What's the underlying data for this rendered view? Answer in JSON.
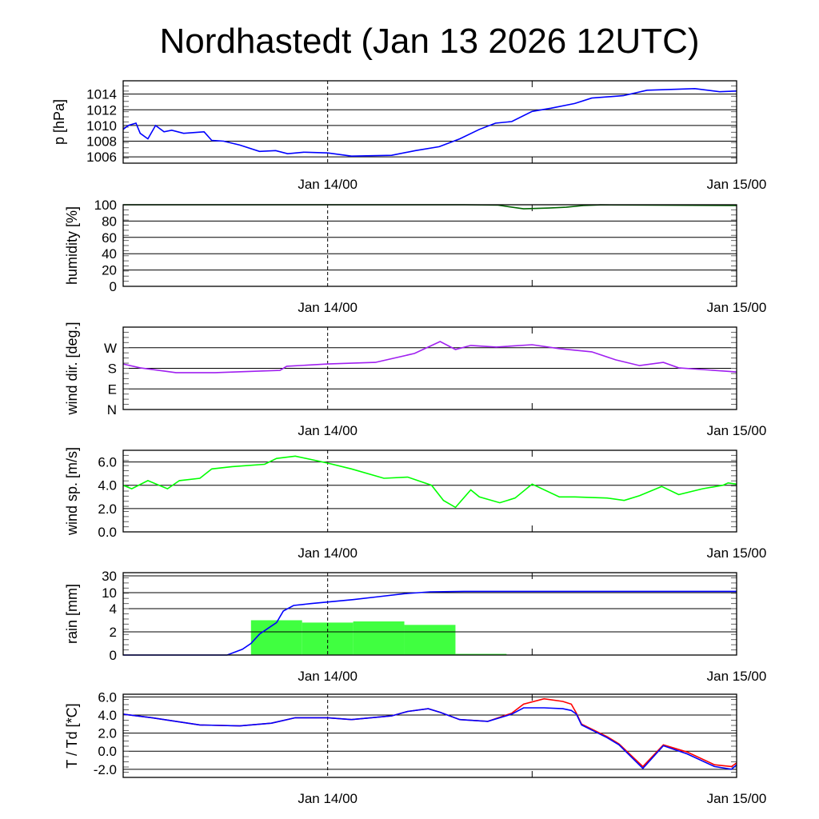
{
  "title": "Nordhastedt (Jan 13 2026 12UTC)",
  "chart_data": [
    {
      "id": "pressure",
      "type": "line",
      "ylabel": "p [hPa]",
      "x_unit": "hours since Jan 13 2026 12UTC",
      "xlim": [
        0,
        36
      ],
      "x_tick_labels": [
        {
          "x": 12,
          "label": "Jan 14/00"
        },
        {
          "x": 36,
          "label": "Jan 15/00"
        }
      ],
      "ylim": [
        1005.2,
        1015.7
      ],
      "y_ticks": [
        1006,
        1008,
        1010,
        1012,
        1014
      ],
      "y_tick_labels": [
        "1006",
        "1008",
        "1010",
        "1012",
        "1014"
      ],
      "series": [
        {
          "name": "p",
          "color": "#0000ff",
          "x": [
            0,
            0.3,
            0.75,
            1,
            1.45,
            1.9,
            2.4,
            2.85,
            3.55,
            4.75,
            5.2,
            5.9,
            6.85,
            8,
            8.95,
            9.65,
            10.6,
            12,
            13.4,
            15.75,
            17.15,
            18.55,
            19.75,
            20.9,
            21.85,
            22.8,
            24,
            25.1,
            26.5,
            27.5,
            29.35,
            30.75,
            33.55,
            35,
            36
          ],
          "y": [
            1009.5,
            1010,
            1010.3,
            1009,
            1008.3,
            1010,
            1009.2,
            1009.4,
            1009,
            1009.2,
            1008.1,
            1008,
            1007.5,
            1006.7,
            1006.8,
            1006.4,
            1006.6,
            1006.5,
            1006.1,
            1006.2,
            1006.8,
            1007.3,
            1008.3,
            1009.5,
            1010.3,
            1010.5,
            1011.8,
            1012.2,
            1012.8,
            1013.5,
            1013.8,
            1014.5,
            1014.7,
            1014.3,
            1014.4
          ]
        }
      ]
    },
    {
      "id": "humidity",
      "type": "line",
      "ylabel": "humidity [%]",
      "xlim": [
        0,
        36
      ],
      "x_tick_labels": [
        {
          "x": 12,
          "label": "Jan 14/00"
        },
        {
          "x": 36,
          "label": "Jan 15/00"
        }
      ],
      "ylim": [
        0,
        100
      ],
      "y_ticks": [
        0,
        20,
        40,
        60,
        80,
        100
      ],
      "y_tick_labels": [
        "0",
        "20",
        "40",
        "60",
        "80",
        "100"
      ],
      "series": [
        {
          "name": "humidity",
          "color": "#006400",
          "x": [
            0,
            20,
            22,
            23.5,
            25,
            26,
            27,
            28,
            36
          ],
          "y": [
            100,
            100,
            99.5,
            95,
            96,
            97,
            99,
            99.8,
            99
          ]
        }
      ]
    },
    {
      "id": "wind_dir",
      "type": "line",
      "ylabel": "wind dir. [deg.]",
      "xlim": [
        0,
        36
      ],
      "x_tick_labels": [
        {
          "x": 12,
          "label": "Jan 14/00"
        },
        {
          "x": 36,
          "label": "Jan 15/00"
        }
      ],
      "ylim": [
        0,
        360
      ],
      "y_ticks": [
        0,
        90,
        180,
        270
      ],
      "y_tick_labels": [
        "N",
        "E",
        "S",
        "W"
      ],
      "series": [
        {
          "name": "wind direction",
          "color": "#a020f0",
          "x": [
            0,
            1,
            3.1,
            5.4,
            9.2,
            9.6,
            12,
            14.8,
            17.1,
            18.6,
            19.5,
            20.4,
            21.9,
            24,
            25.6,
            27.5,
            28.9,
            30.3,
            31.7,
            32.6,
            36
          ],
          "y": [
            199,
            182,
            161,
            161,
            171,
            189,
            199,
            206,
            245,
            297,
            262,
            280,
            273,
            283,
            266,
            252,
            217,
            192,
            206,
            182,
            164
          ]
        }
      ]
    },
    {
      "id": "wind_speed",
      "type": "line",
      "ylabel": "wind sp. [m/s]",
      "xlim": [
        0,
        36
      ],
      "x_tick_labels": [
        {
          "x": 12,
          "label": "Jan 14/00"
        },
        {
          "x": 36,
          "label": "Jan 15/00"
        }
      ],
      "ylim": [
        0,
        7
      ],
      "y_ticks": [
        0,
        2,
        4,
        6
      ],
      "y_tick_labels": [
        "0.0",
        "2.0",
        "4.0",
        "6.0"
      ],
      "series": [
        {
          "name": "wind speed",
          "color": "#00ff00",
          "x": [
            0,
            0.5,
            1.45,
            2.6,
            3.3,
            4.5,
            5.2,
            6.4,
            8.3,
            9,
            10.1,
            12,
            13.4,
            15.3,
            16.7,
            18.1,
            18.8,
            19.5,
            20.4,
            20.9,
            22.1,
            23,
            24,
            25.6,
            26.5,
            28.4,
            29.4,
            30.3,
            31.6,
            32.6,
            34,
            35.2,
            35.5,
            36
          ],
          "y": [
            4.0,
            3.7,
            4.4,
            3.7,
            4.4,
            4.6,
            5.4,
            5.6,
            5.8,
            6.3,
            6.5,
            5.9,
            5.4,
            4.6,
            4.7,
            4.0,
            2.7,
            2.1,
            3.6,
            3.0,
            2.5,
            2.9,
            4.1,
            3.0,
            3.0,
            2.9,
            2.7,
            3.1,
            3.9,
            3.2,
            3.7,
            4.0,
            4.2,
            4.1
          ]
        }
      ]
    },
    {
      "id": "rain",
      "type": "bar+line",
      "ylabel": "rain [mm]",
      "xlim": [
        0,
        36
      ],
      "x_tick_labels": [
        {
          "x": 12,
          "label": "Jan 14/00"
        },
        {
          "x": 36,
          "label": "Jan 15/00"
        }
      ],
      "y_scale": "nonlinear",
      "y_ticks": [
        0,
        2,
        4,
        10,
        30
      ],
      "y_tick_labels": [
        "0",
        "2",
        "4",
        "10",
        "30"
      ],
      "bars": {
        "name": "3h rain",
        "color": "#40ff40",
        "x_start": [
          7.5,
          10.5,
          13.5,
          16.5,
          19.5
        ],
        "x_end": [
          10.5,
          13.5,
          16.5,
          19.5,
          22.5
        ],
        "values": [
          3.0,
          2.8,
          2.9,
          2.6,
          0.1
        ]
      },
      "series": [
        {
          "name": "accumulated rain",
          "color": "#0000ff",
          "x": [
            0,
            6.1,
            7,
            7.5,
            8,
            8.6,
            9,
            9.4,
            10,
            11,
            12,
            13.5,
            15,
            16.5,
            18,
            20,
            22,
            36
          ],
          "y": [
            0,
            0,
            0.5,
            1.0,
            1.8,
            2.4,
            2.8,
            3.8,
            5.2,
            5.9,
            6.5,
            7.4,
            8.5,
            9.6,
            11,
            11.5,
            11.5,
            11.5
          ]
        }
      ]
    },
    {
      "id": "temperature",
      "type": "line",
      "ylabel": "T / Td [*C]",
      "xlim": [
        0,
        36
      ],
      "x_tick_labels": [
        {
          "x": 12,
          "label": "Jan 14/00"
        },
        {
          "x": 36,
          "label": "Jan 15/00"
        }
      ],
      "ylim": [
        -2.9,
        6.3
      ],
      "y_ticks": [
        -2,
        0,
        2,
        4,
        6
      ],
      "y_tick_labels": [
        "-2.0",
        "0.0",
        "2.0",
        "4.0",
        "6.0"
      ],
      "series": [
        {
          "name": "T",
          "color": "#ff0000",
          "x": [
            0,
            1.7,
            3.1,
            4.5,
            6.85,
            8.7,
            10.1,
            12,
            13.4,
            15.75,
            16.7,
            17.9,
            18.6,
            19.75,
            21.4,
            22.8,
            23.5,
            24.7,
            25.8,
            26.3,
            26.6,
            26.9,
            28.4,
            29.1,
            30.5,
            31.7,
            33.1,
            34.7,
            35.7,
            36
          ],
          "y": [
            4.1,
            3.7,
            3.3,
            2.9,
            2.8,
            3.1,
            3.7,
            3.7,
            3.5,
            3.9,
            4.4,
            4.7,
            4.3,
            3.5,
            3.3,
            4.2,
            5.2,
            5.8,
            5.5,
            5.2,
            4.2,
            3.0,
            1.6,
            0.8,
            -1.7,
            0.7,
            -0.1,
            -1.5,
            -1.7,
            -1.3
          ]
        },
        {
          "name": "Td",
          "color": "#0000ff",
          "x": [
            0,
            1.7,
            3.1,
            4.5,
            6.85,
            8.7,
            10.1,
            12,
            13.4,
            15.75,
            16.7,
            17.9,
            18.6,
            19.75,
            21.4,
            22.8,
            23.5,
            24.7,
            25.8,
            26.3,
            26.6,
            26.9,
            28.4,
            29.1,
            30.5,
            31.7,
            33.1,
            34.7,
            35.7,
            36
          ],
          "y": [
            4.1,
            3.7,
            3.3,
            2.9,
            2.8,
            3.1,
            3.7,
            3.7,
            3.5,
            3.9,
            4.4,
            4.7,
            4.3,
            3.5,
            3.3,
            4.1,
            4.8,
            4.8,
            4.7,
            4.5,
            4.1,
            2.9,
            1.5,
            0.7,
            -1.9,
            0.6,
            -0.3,
            -1.7,
            -2.0,
            -1.5
          ]
        }
      ]
    }
  ]
}
